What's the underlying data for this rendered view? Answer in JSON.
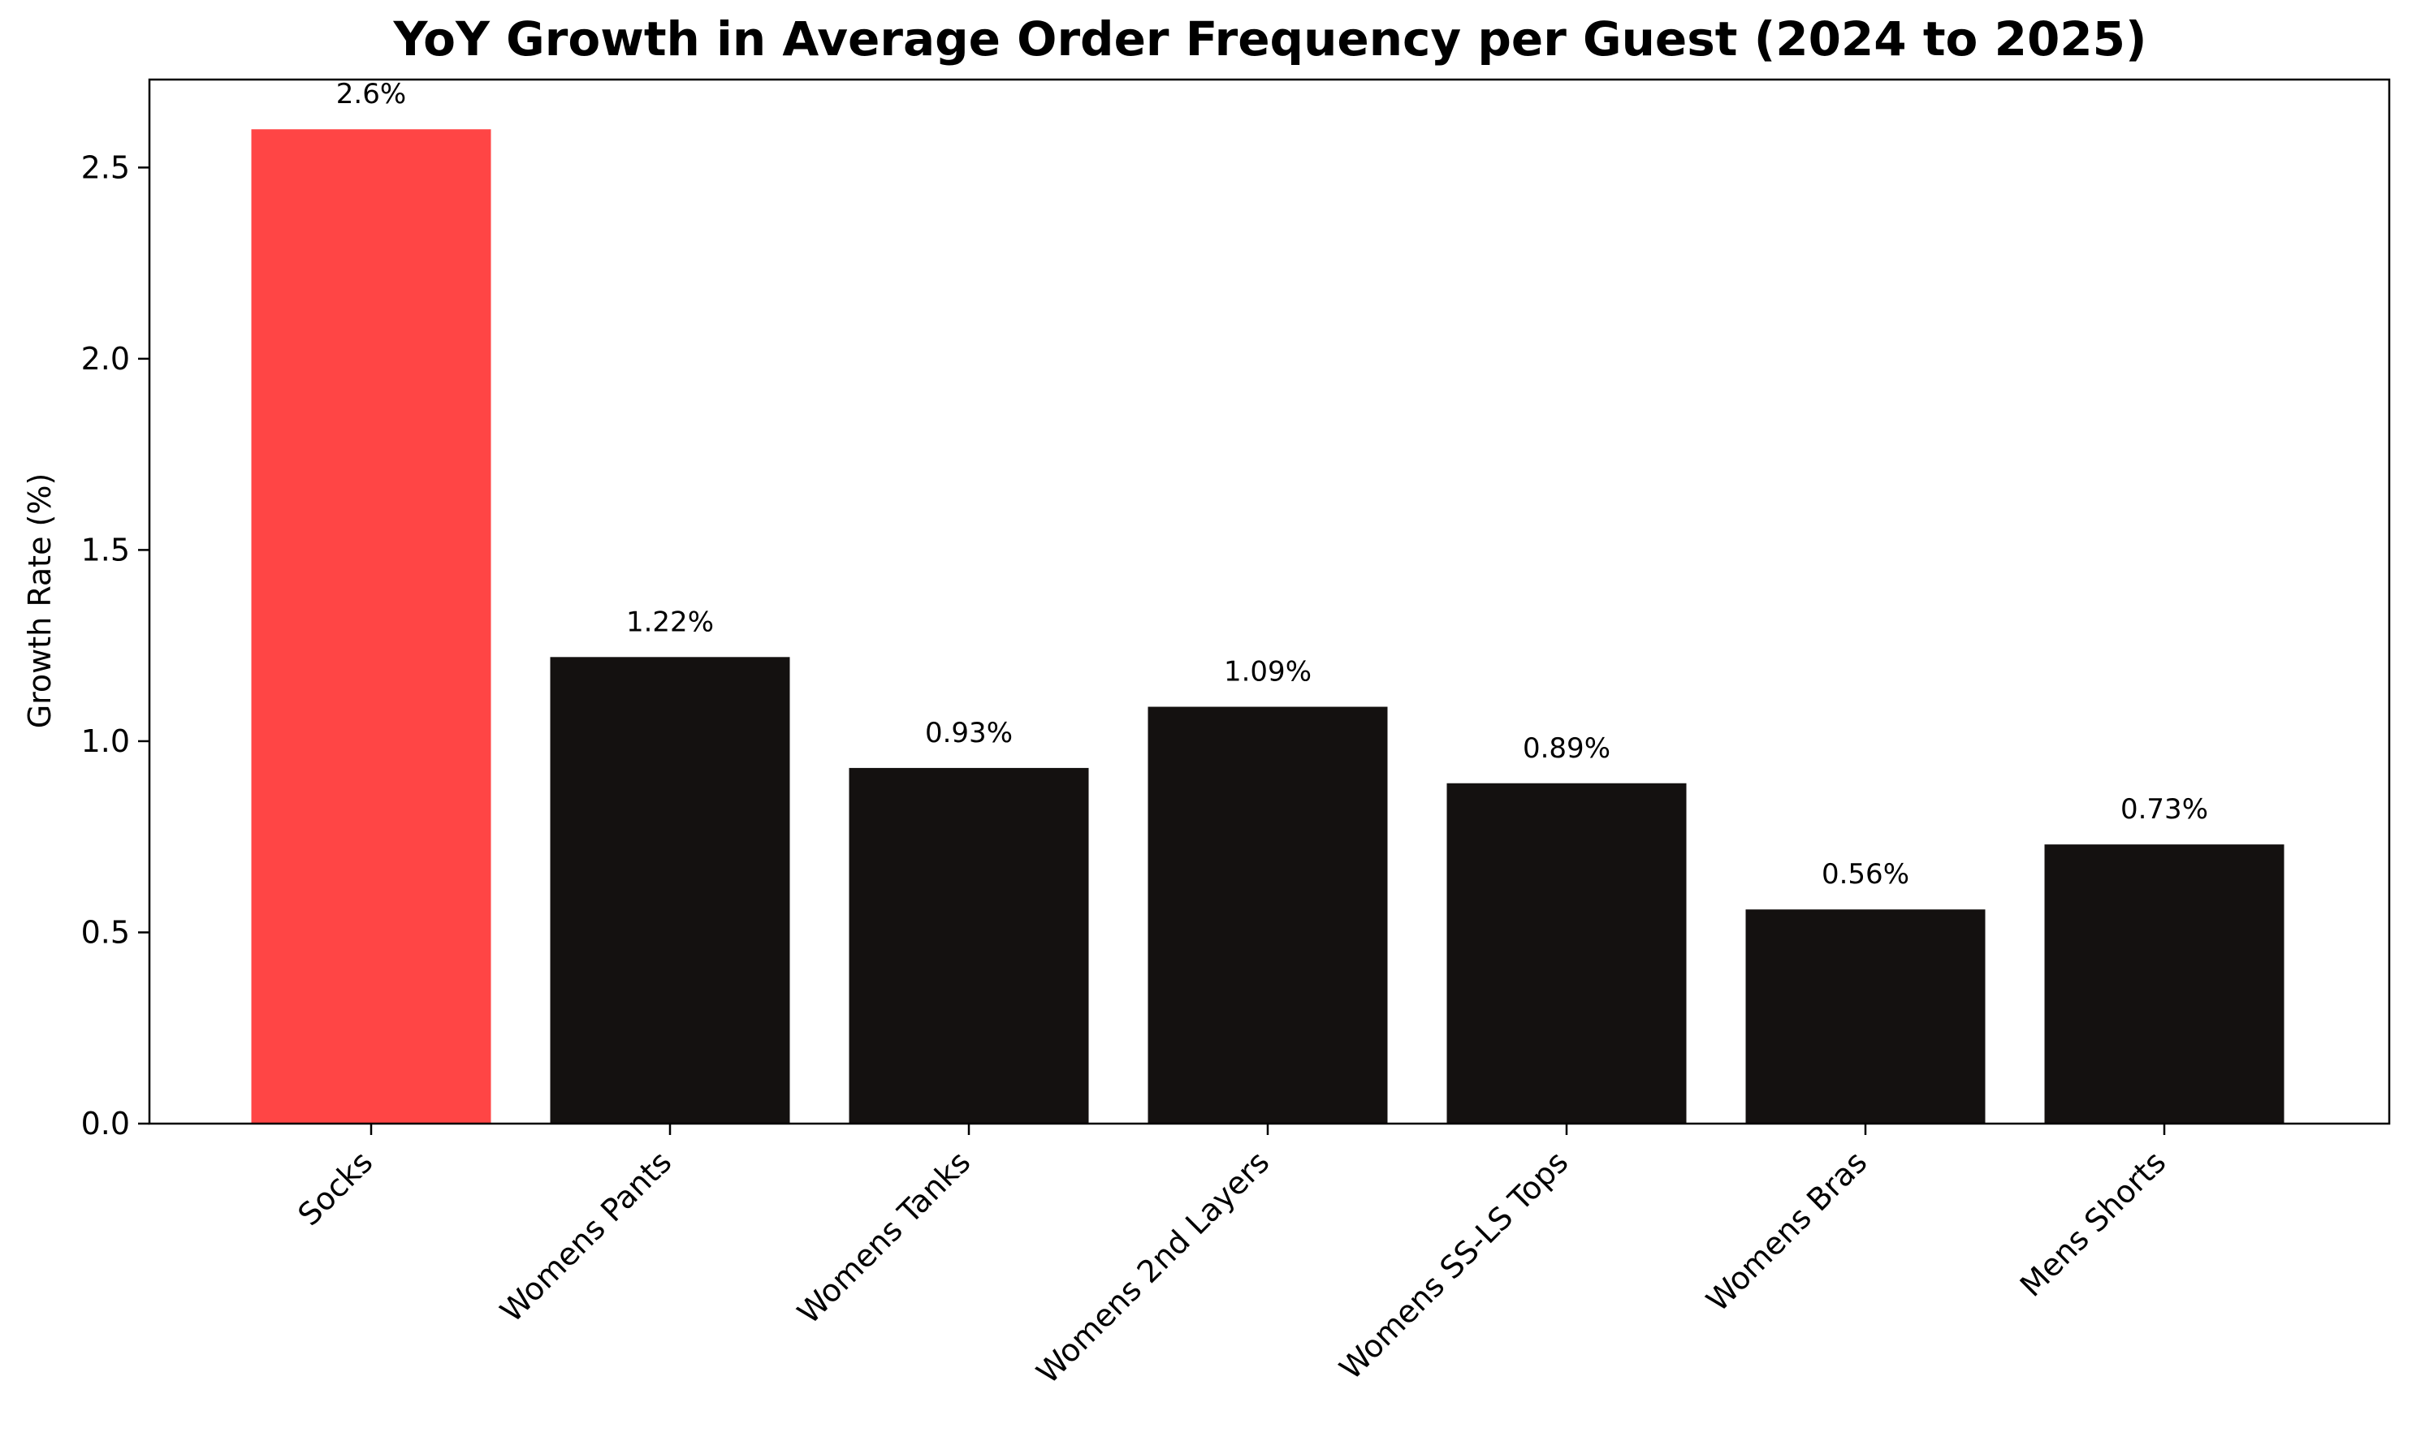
{
  "chart_data": {
    "type": "bar",
    "title": "YoY Growth in Average Order Frequency per Guest (2024 to 2025)",
    "xlabel": "",
    "ylabel": "Growth Rate (%)",
    "categories": [
      "Socks",
      "Womens Pants",
      "Womens Tanks",
      "Womens 2nd Layers",
      "Womens SS-LS Tops",
      "Womens Bras",
      "Mens Shorts"
    ],
    "values": [
      2.6,
      1.22,
      0.93,
      1.09,
      0.89,
      0.56,
      0.73
    ],
    "data_labels": [
      "2.6%",
      "1.22%",
      "0.93%",
      "1.09%",
      "0.89%",
      "0.56%",
      "0.73%"
    ],
    "ylim": [
      0,
      2.73
    ],
    "yticks": [
      0.0,
      0.5,
      1.0,
      1.5,
      2.0,
      2.5
    ],
    "ytick_labels": [
      "0.0",
      "0.5",
      "1.0",
      "1.5",
      "2.0",
      "2.5"
    ],
    "grid": false,
    "highlight_color": "#ff4545",
    "bar_color": "#141110"
  }
}
